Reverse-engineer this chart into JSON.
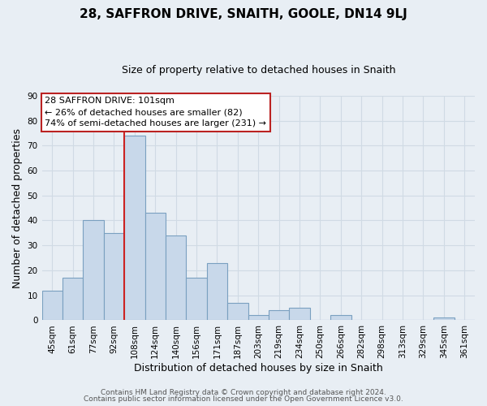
{
  "title": "28, SAFFRON DRIVE, SNAITH, GOOLE, DN14 9LJ",
  "subtitle": "Size of property relative to detached houses in Snaith",
  "xlabel": "Distribution of detached houses by size in Snaith",
  "ylabel": "Number of detached properties",
  "categories": [
    "45sqm",
    "61sqm",
    "77sqm",
    "92sqm",
    "108sqm",
    "124sqm",
    "140sqm",
    "156sqm",
    "171sqm",
    "187sqm",
    "203sqm",
    "219sqm",
    "234sqm",
    "250sqm",
    "266sqm",
    "282sqm",
    "298sqm",
    "313sqm",
    "329sqm",
    "345sqm",
    "361sqm"
  ],
  "values": [
    12,
    17,
    40,
    35,
    74,
    43,
    34,
    17,
    23,
    7,
    2,
    4,
    5,
    0,
    2,
    0,
    0,
    0,
    0,
    1,
    0
  ],
  "bar_color": "#c8d8ea",
  "bar_edge_color": "#7aa0c0",
  "redline_x": 3.5,
  "ylim": [
    0,
    90
  ],
  "yticks": [
    0,
    10,
    20,
    30,
    40,
    50,
    60,
    70,
    80,
    90
  ],
  "annotation_box_text": "28 SAFFRON DRIVE: 101sqm\n← 26% of detached houses are smaller (82)\n74% of semi-detached houses are larger (231) →",
  "footer_line1": "Contains HM Land Registry data © Crown copyright and database right 2024.",
  "footer_line2": "Contains public sector information licensed under the Open Government Licence v3.0.",
  "title_fontsize": 11,
  "subtitle_fontsize": 9,
  "axis_label_fontsize": 9,
  "tick_fontsize": 7.5,
  "annotation_fontsize": 8,
  "footer_fontsize": 6.5,
  "background_color": "#e8eef4",
  "grid_color": "#d0dae4",
  "plot_bg_color": "#e8eef4"
}
